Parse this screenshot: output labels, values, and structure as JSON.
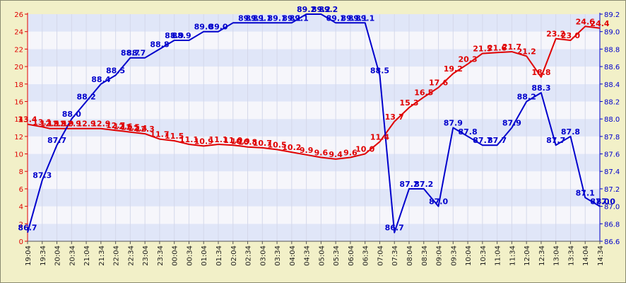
{
  "chart_data": {
    "type": "line",
    "grid": true,
    "x": [
      "19:04",
      "19:34",
      "20:04",
      "20:34",
      "21:04",
      "21:34",
      "22:04",
      "22:34",
      "23:04",
      "23:34",
      "00:04",
      "00:34",
      "01:04",
      "01:34",
      "02:04",
      "02:34",
      "03:04",
      "03:34",
      "04:04",
      "04:34",
      "05:04",
      "05:34",
      "06:04",
      "06:34",
      "07:04",
      "07:34",
      "08:04",
      "08:34",
      "09:04",
      "09:34",
      "10:04",
      "10:34",
      "11:04",
      "11:34",
      "12:04",
      "12:34",
      "13:04",
      "13:34",
      "14:04",
      "14:34"
    ],
    "left_axis": {
      "min": 0,
      "max": 26,
      "ticks": [
        "0",
        "2",
        "4",
        "6",
        "8",
        "10",
        "12",
        "14",
        "16",
        "18",
        "20",
        "22",
        "24",
        "26"
      ],
      "color": "#e00000"
    },
    "right_axis": {
      "min": 86.6,
      "max": 89.2,
      "ticks": [
        "86.6",
        "86.8",
        "87.0",
        "87.2",
        "87.4",
        "87.6",
        "87.8",
        "88.0",
        "88.2",
        "88.4",
        "88.6",
        "88.8",
        "89.0",
        "89.2"
      ],
      "color": "#0000cc"
    },
    "series": [
      {
        "axis": "left",
        "color": "#e00000",
        "points": [
          [
            0,
            13.4
          ],
          [
            1,
            13.1
          ],
          [
            1.5,
            12.9
          ],
          [
            2,
            12.9
          ],
          [
            2.5,
            12.9
          ],
          [
            3,
            12.9
          ],
          [
            4,
            12.9
          ],
          [
            5,
            12.9
          ],
          [
            6,
            12.7
          ],
          [
            6.5,
            12.6
          ],
          [
            7,
            12.5
          ],
          [
            7.5,
            12.4
          ],
          [
            8,
            12.3
          ],
          [
            9,
            11.7
          ],
          [
            10,
            11.5
          ],
          [
            11,
            11.1
          ],
          [
            12,
            10.9
          ],
          [
            13,
            11.1
          ],
          [
            14,
            11.0
          ],
          [
            14.5,
            10.9
          ],
          [
            15,
            10.8
          ],
          [
            16,
            10.7
          ],
          [
            17,
            10.5
          ],
          [
            18,
            10.2
          ],
          [
            19,
            9.9
          ],
          [
            20,
            9.6
          ],
          [
            21,
            9.4
          ],
          [
            22,
            9.6
          ],
          [
            23,
            10.0
          ],
          [
            24,
            11.4
          ],
          [
            25,
            13.7
          ],
          [
            26,
            15.3
          ],
          [
            27,
            16.5
          ],
          [
            28,
            17.6
          ],
          [
            29,
            19.2
          ],
          [
            30,
            20.3
          ],
          [
            31,
            21.5
          ],
          [
            32,
            21.6
          ],
          [
            33,
            21.7
          ],
          [
            34,
            21.2
          ],
          [
            35,
            18.8
          ],
          [
            36,
            23.2
          ],
          [
            37,
            23.0
          ],
          [
            38,
            24.6
          ],
          [
            39,
            24.4
          ]
        ],
        "labels": [
          [
            0,
            13.4,
            "13.4"
          ],
          [
            1,
            13.1,
            "13.1"
          ],
          [
            1.5,
            12.9,
            "12.9"
          ],
          [
            2,
            12.9,
            "12.9"
          ],
          [
            2.5,
            12.9,
            "12.9"
          ],
          [
            3,
            12.9,
            "12.9"
          ],
          [
            4,
            12.9,
            "12.9"
          ],
          [
            5,
            12.9,
            "12.9"
          ],
          [
            6,
            12.7,
            "12.7"
          ],
          [
            6.5,
            12.6,
            "12.6"
          ],
          [
            7,
            12.5,
            "12.5"
          ],
          [
            7.5,
            12.4,
            "12.4"
          ],
          [
            8,
            12.3,
            "12.3"
          ],
          [
            9,
            11.7,
            "11.7"
          ],
          [
            10,
            11.5,
            "11.5"
          ],
          [
            11,
            11.1,
            "11.1"
          ],
          [
            12,
            10.9,
            "10.9"
          ],
          [
            13,
            11.1,
            "11.1"
          ],
          [
            14,
            11.0,
            "11.0"
          ],
          [
            14.5,
            10.9,
            "10.9"
          ],
          [
            15,
            10.8,
            "10.8"
          ],
          [
            16,
            10.7,
            "10.7"
          ],
          [
            17,
            10.5,
            "10.5"
          ],
          [
            18,
            10.2,
            "10.2"
          ],
          [
            19,
            9.9,
            "9.9"
          ],
          [
            20,
            9.6,
            "9.6"
          ],
          [
            21,
            9.4,
            "9.4"
          ],
          [
            22,
            9.6,
            "9.6"
          ],
          [
            23,
            10.0,
            "10.0"
          ],
          [
            24,
            11.4,
            "11.4"
          ],
          [
            25,
            13.7,
            "13.7"
          ],
          [
            26,
            15.3,
            "15.3"
          ],
          [
            27,
            16.5,
            "16.5"
          ],
          [
            28,
            17.6,
            "17.6"
          ],
          [
            29,
            19.2,
            "19.2"
          ],
          [
            30,
            20.3,
            "20.3"
          ],
          [
            31,
            21.5,
            "21.5"
          ],
          [
            32,
            21.6,
            "21.6"
          ],
          [
            33,
            21.7,
            "21.7"
          ],
          [
            34,
            21.2,
            "21.2"
          ],
          [
            35,
            18.8,
            "18.8"
          ],
          [
            36,
            23.2,
            "23.2"
          ],
          [
            37,
            23.0,
            "23.0"
          ],
          [
            38,
            24.6,
            "24.6"
          ],
          [
            39,
            24.4,
            "24.4"
          ]
        ]
      },
      {
        "axis": "right",
        "color": "#0000cc",
        "points": [
          [
            0,
            86.7
          ],
          [
            1,
            87.3
          ],
          [
            2,
            87.7
          ],
          [
            3,
            88.0
          ],
          [
            4,
            88.2
          ],
          [
            5,
            88.4
          ],
          [
            6,
            88.5
          ],
          [
            7,
            88.7
          ],
          [
            8,
            88.7
          ],
          [
            9,
            88.8
          ],
          [
            10,
            88.9
          ],
          [
            11,
            88.9
          ],
          [
            12,
            89.0
          ],
          [
            13,
            89.0
          ],
          [
            14,
            89.1
          ],
          [
            15,
            89.1
          ],
          [
            16,
            89.1
          ],
          [
            17,
            89.1
          ],
          [
            18,
            89.1
          ],
          [
            19,
            89.2
          ],
          [
            20,
            89.2
          ],
          [
            21,
            89.1
          ],
          [
            22,
            89.1
          ],
          [
            23,
            89.1
          ],
          [
            24,
            88.5
          ],
          [
            25,
            86.7
          ],
          [
            26,
            87.2
          ],
          [
            27,
            87.2
          ],
          [
            28,
            87.0
          ],
          [
            29,
            87.9
          ],
          [
            30,
            87.8
          ],
          [
            31,
            87.7
          ],
          [
            32,
            87.7
          ],
          [
            33,
            87.9
          ],
          [
            34,
            88.2
          ],
          [
            35,
            88.3
          ],
          [
            36,
            87.7
          ],
          [
            37,
            87.8
          ],
          [
            38,
            87.1
          ],
          [
            39,
            87.0
          ]
        ],
        "labels": [
          [
            0,
            86.7,
            "86.7"
          ],
          [
            1,
            87.3,
            "87.3"
          ],
          [
            2,
            87.7,
            "87.7"
          ],
          [
            3,
            88.0,
            "88.0"
          ],
          [
            4,
            88.2,
            "88.2"
          ],
          [
            5,
            88.4,
            "88.4"
          ],
          [
            6,
            88.5,
            "88.5"
          ],
          [
            7,
            88.7,
            "88.7"
          ],
          [
            7.4,
            88.7,
            "88.7"
          ],
          [
            9,
            88.8,
            "88.8"
          ],
          [
            10,
            88.9,
            "88.9"
          ],
          [
            10.5,
            88.9,
            "88.9"
          ],
          [
            12,
            89.0,
            "89.0"
          ],
          [
            13,
            89.0,
            "89.0"
          ],
          [
            15,
            89.1,
            "89.1"
          ],
          [
            15.5,
            89.1,
            "89.1"
          ],
          [
            16,
            89.1,
            "89.1"
          ],
          [
            17,
            89.1,
            "89.1"
          ],
          [
            18,
            89.1,
            "89.1"
          ],
          [
            18.5,
            89.1,
            "89.1"
          ],
          [
            19,
            89.2,
            "89.2"
          ],
          [
            20,
            89.2,
            "89.2"
          ],
          [
            20.5,
            89.2,
            "89.2"
          ],
          [
            21,
            89.1,
            "89.1"
          ],
          [
            22,
            89.1,
            "89.1"
          ],
          [
            22.5,
            89.1,
            "89.1"
          ],
          [
            23,
            89.1,
            "89.1"
          ],
          [
            24,
            88.5,
            "88.5"
          ],
          [
            25,
            86.7,
            "86.7"
          ],
          [
            26,
            87.2,
            "87.2"
          ],
          [
            27,
            87.2,
            "87.2"
          ],
          [
            28,
            87.0,
            "87.0"
          ],
          [
            29,
            87.9,
            "87.9"
          ],
          [
            30,
            87.8,
            "87.8"
          ],
          [
            31,
            87.7,
            "87.7"
          ],
          [
            32,
            87.7,
            "87.7"
          ],
          [
            33,
            87.9,
            "87.9"
          ],
          [
            34,
            88.2,
            "88.2"
          ],
          [
            35,
            88.3,
            "88.3"
          ],
          [
            36,
            87.7,
            "87.7"
          ],
          [
            37,
            87.8,
            "87.8"
          ],
          [
            38,
            87.1,
            "87.1"
          ],
          [
            39,
            87.0,
            "87.0"
          ],
          [
            39.4,
            87.0,
            "87.0"
          ]
        ]
      }
    ]
  }
}
